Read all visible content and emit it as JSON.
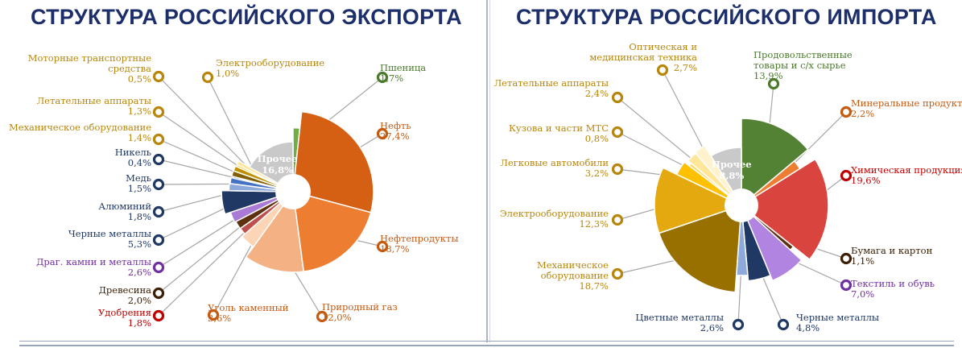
{
  "titles": {
    "export": "СТРУКТУРА РОССИЙСКОГО ЭКСПОРТА",
    "import": "СТРУКТУРА РОССИЙСКОГО ИМПОРТА"
  },
  "chart_data": [
    {
      "type": "pie",
      "title": "СТРУКТУРА РОССИЙСКОГО ЭКСПОРТА",
      "unit": "%",
      "slices": [
        {
          "label": "Пшеница",
          "value": 1.7,
          "display": "1,7%",
          "color": "#70ad47",
          "label_color": "#4a7a2a"
        },
        {
          "label": "Нефть",
          "value": 27.4,
          "display": "27,4%",
          "color": "#d55f13",
          "label_color": "#c55a11"
        },
        {
          "label": "Нефтепродукты",
          "value": 18.7,
          "display": "18,7%",
          "color": "#ed7d31",
          "label_color": "#c55a11"
        },
        {
          "label": "Природный газ",
          "value": 12.0,
          "display": "12,0%",
          "color": "#f4b183",
          "label_color": "#c55a11"
        },
        {
          "label": "Уголь каменный",
          "value": 3.6,
          "display": "3,6%",
          "color": "#fbd5b5",
          "label_color": "#c55a11"
        },
        {
          "label": "Удобрения",
          "value": 1.8,
          "display": "1,8%",
          "color": "#c0504d",
          "label_color": "#c00000"
        },
        {
          "label": "Древесина",
          "value": 2.0,
          "display": "2,0%",
          "color": "#5c3011",
          "label_color": "#3b2005"
        },
        {
          "label": "Драг. камни и металлы",
          "value": 2.6,
          "display": "2,6%",
          "color": "#a97bd6",
          "label_color": "#7030a0"
        },
        {
          "label": "Черные металлы",
          "value": 5.3,
          "display": "5,3%",
          "color": "#1f3864",
          "label_color": "#1f3864"
        },
        {
          "label": "Алюминий",
          "value": 1.8,
          "display": "1,8%",
          "color": "#8eaadb",
          "label_color": "#1f3864"
        },
        {
          "label": "Медь",
          "value": 1.5,
          "display": "1,5%",
          "color": "#4472c4",
          "label_color": "#1f3864"
        },
        {
          "label": "Никель",
          "value": 0.4,
          "display": "0,4%",
          "color": "#2f5496",
          "label_color": "#1f3864"
        },
        {
          "label": "Механическое оборудование",
          "value": 1.4,
          "display": "1,4%",
          "color": "#806000",
          "label_color": "#b8860b"
        },
        {
          "label": "Летательные аппараты",
          "value": 1.3,
          "display": "1,3%",
          "color": "#bf9000",
          "label_color": "#b8860b"
        },
        {
          "label": "Моторные транспортные средства",
          "value": 0.5,
          "display": "0,5%",
          "color": "#ffc000",
          "label_color": "#b8860b"
        },
        {
          "label": "Электрооборудование",
          "value": 1.0,
          "display": "1,0%",
          "color": "#ffe699",
          "label_color": "#b8860b"
        },
        {
          "label": "Прочее",
          "value": 16.8,
          "display": "16,8%",
          "color": "#c9c9c9",
          "label_color": "#ffffff"
        }
      ]
    },
    {
      "type": "pie",
      "title": "СТРУКТУРА РОССИЙСКОГО ИМПОРТА",
      "unit": "%",
      "slices": [
        {
          "label": "Продовольственные товары и с/х сырье",
          "value": 13.9,
          "display": "13,9%",
          "color": "#548235",
          "label_color": "#4a7a2a"
        },
        {
          "label": "Минеральные продукты",
          "value": 2.2,
          "display": "2,2%",
          "color": "#ed7d31",
          "label_color": "#c55a11"
        },
        {
          "label": "Химическая продукция",
          "value": 19.6,
          "display": "19,6%",
          "color": "#d9443f",
          "label_color": "#c00000"
        },
        {
          "label": "Бумага и картон",
          "value": 1.1,
          "display": "1,1%",
          "color": "#5c3011",
          "label_color": "#3b2005"
        },
        {
          "label": "Текстиль и обувь",
          "value": 7.0,
          "display": "7,0%",
          "color": "#b084e0",
          "label_color": "#7030a0"
        },
        {
          "label": "Черные металлы",
          "value": 4.8,
          "display": "4,8%",
          "color": "#1f3864",
          "label_color": "#1f3864"
        },
        {
          "label": "Цветные металлы",
          "value": 2.6,
          "display": "2,6%",
          "color": "#8eaadb",
          "label_color": "#1f3864"
        },
        {
          "label": "Механическое оборудование",
          "value": 18.7,
          "display": "18,7%",
          "color": "#977000",
          "label_color": "#b8860b"
        },
        {
          "label": "Электрооборудование",
          "value": 12.3,
          "display": "12,3%",
          "color": "#e3a90e",
          "label_color": "#b8860b"
        },
        {
          "label": "Легковые автомобили",
          "value": 3.2,
          "display": "3,2%",
          "color": "#ffc000",
          "label_color": "#b8860b"
        },
        {
          "label": "Кузова и части МТС",
          "value": 0.8,
          "display": "0,8%",
          "color": "#ffd966",
          "label_color": "#b8860b"
        },
        {
          "label": "Летательные аппараты",
          "value": 2.4,
          "display": "2,4%",
          "color": "#ffe699",
          "label_color": "#b8860b"
        },
        {
          "label": "Оптическая и медицинская техника",
          "value": 2.7,
          "display": "2,7%",
          "color": "#fff2cc",
          "label_color": "#b8860b"
        },
        {
          "label": "Прочее",
          "value": 8.8,
          "display": "8,8%",
          "color": "#c9c9c9",
          "label_color": "#ffffff"
        }
      ]
    }
  ]
}
